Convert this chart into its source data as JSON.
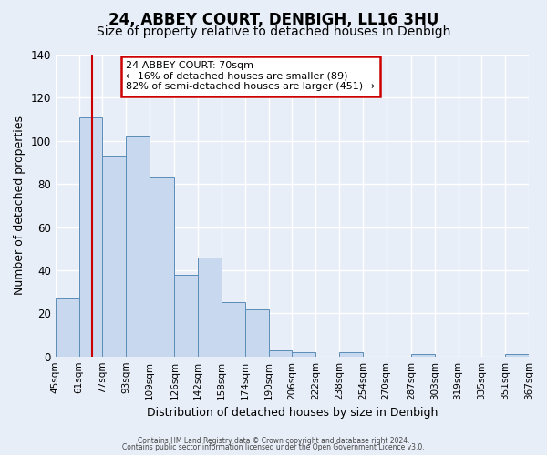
{
  "title": "24, ABBEY COURT, DENBIGH, LL16 3HU",
  "subtitle": "Size of property relative to detached houses in Denbigh",
  "xlabel": "Distribution of detached houses by size in Denbigh",
  "ylabel": "Number of detached properties",
  "bin_labels": [
    "45sqm",
    "61sqm",
    "77sqm",
    "93sqm",
    "109sqm",
    "126sqm",
    "142sqm",
    "158sqm",
    "174sqm",
    "190sqm",
    "206sqm",
    "222sqm",
    "238sqm",
    "254sqm",
    "270sqm",
    "287sqm",
    "303sqm",
    "319sqm",
    "335sqm",
    "351sqm",
    "367sqm"
  ],
  "bin_edges": [
    45,
    61,
    77,
    93,
    109,
    126,
    142,
    158,
    174,
    190,
    206,
    222,
    238,
    254,
    270,
    287,
    303,
    319,
    335,
    351,
    367
  ],
  "bar_heights": [
    27,
    111,
    93,
    102,
    83,
    38,
    46,
    25,
    22,
    3,
    2,
    0,
    2,
    0,
    0,
    1,
    0,
    0,
    0,
    1
  ],
  "bar_color": "#c8d9ef",
  "bar_edge_color": "#5b8db8",
  "red_line_x": 70,
  "annotation_title": "24 ABBEY COURT: 70sqm",
  "annotation_line1": "← 16% of detached houses are smaller (89)",
  "annotation_line2": "82% of semi-detached houses are larger (451) →",
  "annotation_box_color": "#ffffff",
  "annotation_box_edge": "#cc0000",
  "ylim": [
    0,
    140
  ],
  "yticks": [
    0,
    20,
    40,
    60,
    80,
    100,
    120,
    140
  ],
  "footer1": "Contains HM Land Registry data © Crown copyright and database right 2024.",
  "footer2": "Contains public sector information licensed under the Open Government Licence v3.0.",
  "background_color": "#e8eef8",
  "plot_background": "#e8eef8",
  "grid_color": "#ffffff",
  "title_fontsize": 12,
  "subtitle_fontsize": 10
}
